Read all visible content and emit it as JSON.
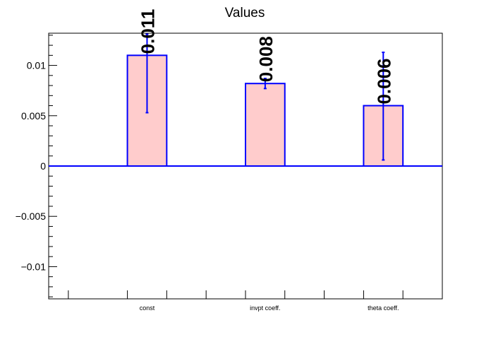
{
  "chart_data": {
    "type": "bar",
    "title": "Values",
    "xlabel": "",
    "ylabel": "",
    "categories": [
      "const",
      "invpt coeff.",
      "theta coeff."
    ],
    "values": [
      0.011,
      0.0082,
      0.006
    ],
    "error_low": [
      0.0053,
      0.0077,
      0.0006
    ],
    "error_high": [
      0.0131,
      0.0087,
      0.0113
    ],
    "data_labels": [
      "0.011",
      "0.008",
      "0.006"
    ],
    "ylim": [
      -0.0132,
      0.0132
    ],
    "yticks": [
      -0.01,
      -0.005,
      0,
      0.005,
      0.01
    ],
    "ytick_labels": [
      "−0.01",
      "−0.005",
      "0",
      "0.005",
      "0.01"
    ],
    "grid": false,
    "legend": "none",
    "colors": {
      "bar_fill": "#ffcccc",
      "bar_stroke": "#0000ff",
      "error_bar": "#0000ff",
      "zero_line": "#0000ff",
      "axis": "#000000",
      "text": "#000000"
    }
  }
}
